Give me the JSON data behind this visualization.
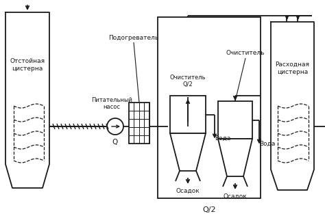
{
  "bg_color": "#ffffff",
  "line_color": "#1a1a1a",
  "fig_width": 4.74,
  "fig_height": 3.16,
  "dpi": 100,
  "labels": {
    "left_tank": "Отстойная\nцистерна",
    "right_tank": "Расходная\nцистерна",
    "heater": "Подогреватель",
    "pump": "Питательный\nнасос",
    "cleaner1": "Очиститель\nQ/2",
    "cleaner2": "Очиститель",
    "water1": "Вода",
    "sediment1": "Осадок",
    "water2": "Вода",
    "sediment2": "Осадок",
    "Q": "Q",
    "Q2_bottom": "Q/2"
  }
}
